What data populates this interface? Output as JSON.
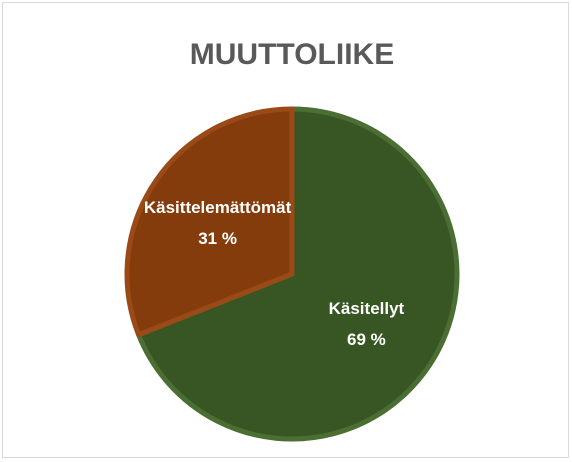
{
  "chart_data": {
    "type": "pie",
    "title": "MUUTTOLIIKE",
    "categories": [
      "Käsitellyt",
      "Käsittelemättömät"
    ],
    "values": [
      69,
      31
    ],
    "value_labels": [
      "69 %",
      "31 %"
    ],
    "colors": [
      "#375623",
      "#843c0c"
    ]
  }
}
